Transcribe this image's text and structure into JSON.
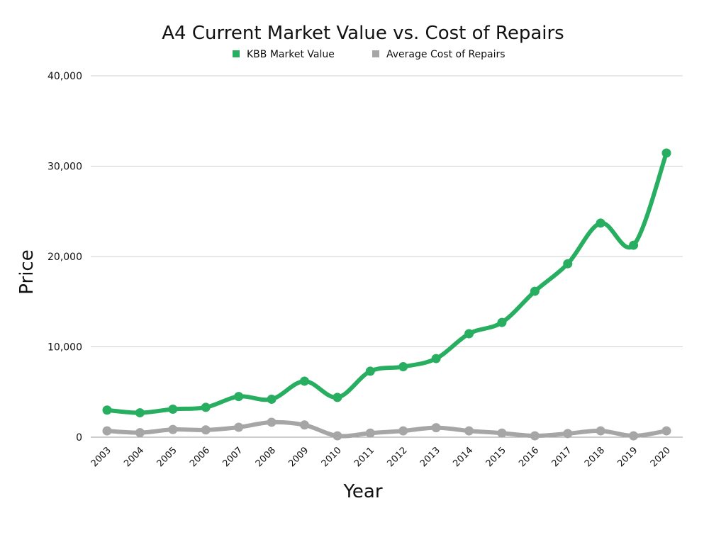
{
  "chart_data": {
    "type": "line",
    "title": "A4 Current Market Value vs. Cost of Repairs",
    "xlabel": "Year",
    "ylabel": "Price",
    "ylim": [
      0,
      40000
    ],
    "yticks": [
      "0",
      "10,000",
      "20,000",
      "30,000",
      "40,000"
    ],
    "ytick_values": [
      0,
      10000,
      20000,
      30000,
      40000
    ],
    "grid": true,
    "legend_position": "top",
    "categories": [
      "2003",
      "2004",
      "2005",
      "2006",
      "2007",
      "2008",
      "2009",
      "2010",
      "2011",
      "2012",
      "2013",
      "2014",
      "2015",
      "2016",
      "2017",
      "2018",
      "2019",
      "2020"
    ],
    "series": [
      {
        "name": "KBB Market Value",
        "color": "#27ae60",
        "values": [
          3000,
          2700,
          3100,
          3300,
          4500,
          4200,
          6200,
          4400,
          7300,
          7800,
          8700,
          11450,
          12700,
          16150,
          19200,
          23700,
          21250,
          31450
        ]
      },
      {
        "name": "Average Cost of Repairs",
        "color": "#a6a6a6",
        "values": [
          700,
          500,
          850,
          800,
          1100,
          1650,
          1350,
          150,
          450,
          700,
          1050,
          700,
          450,
          150,
          400,
          700,
          150,
          700
        ]
      }
    ]
  }
}
